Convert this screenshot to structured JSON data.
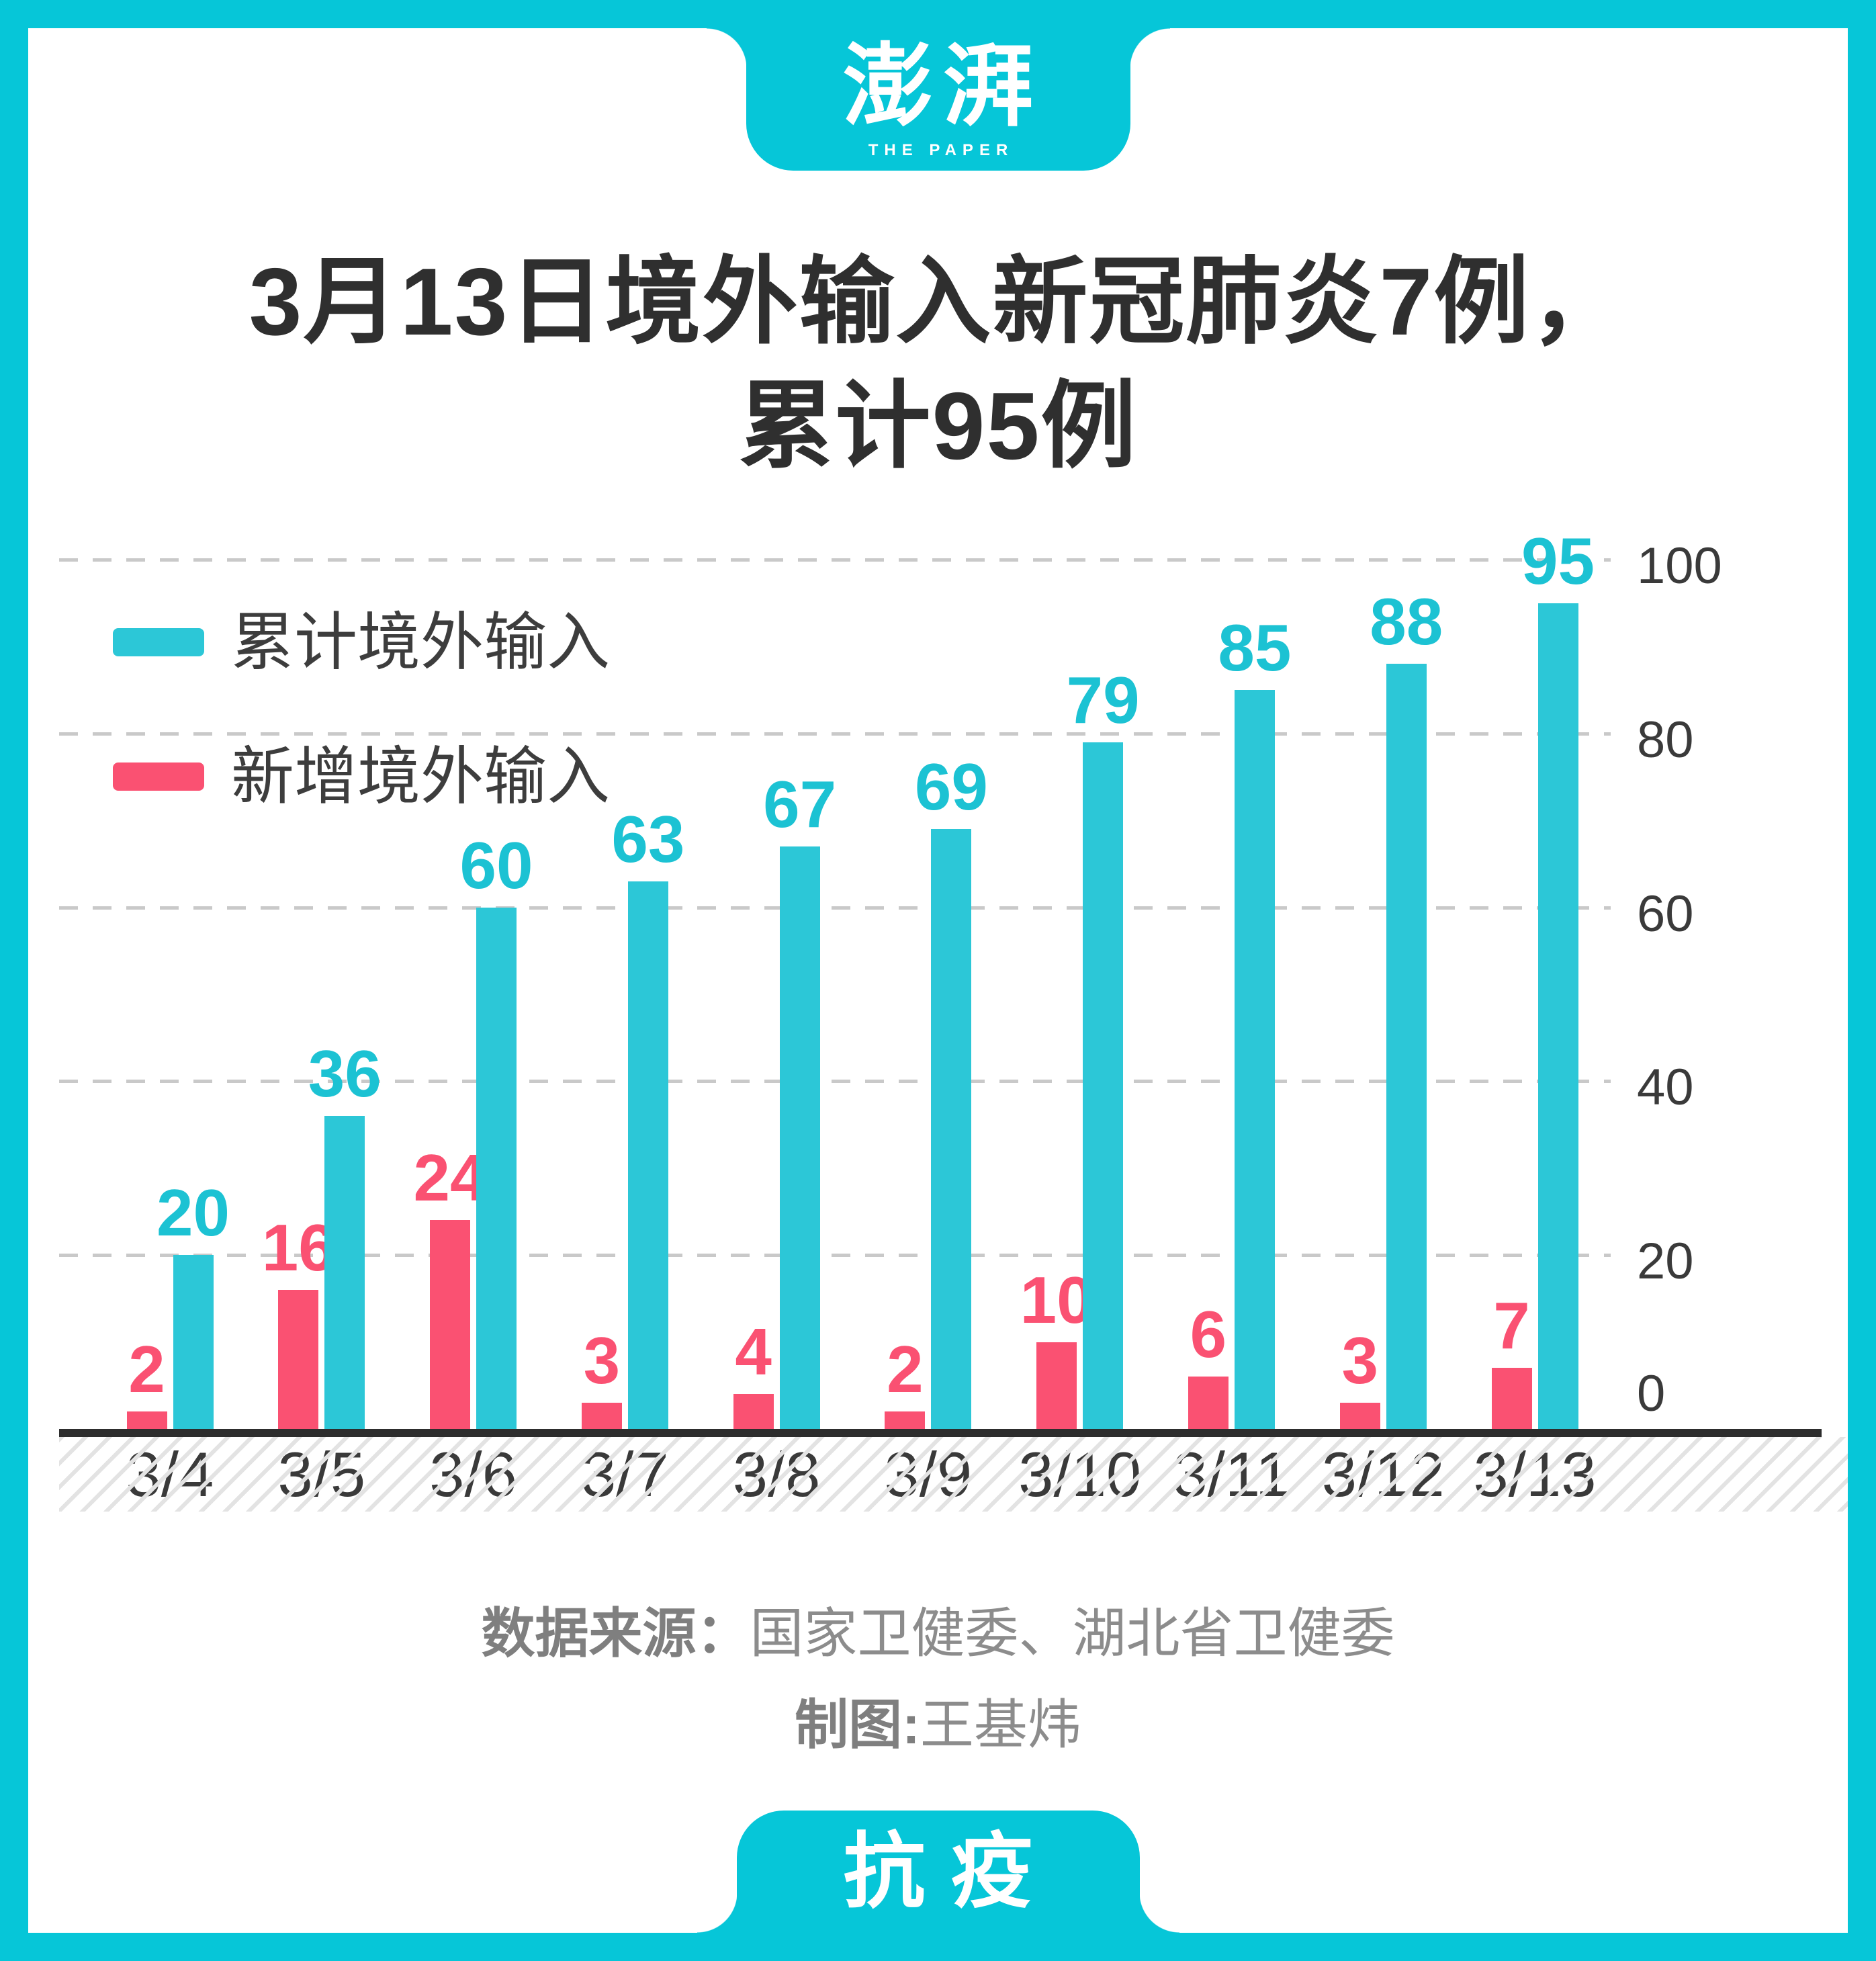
{
  "brand": {
    "logo_main": "澎湃",
    "logo_sub": "THE PAPER"
  },
  "title": {
    "line1": "3月13日境外输入新冠肺炎7例，",
    "line2": "累计95例"
  },
  "legend": {
    "items": [
      {
        "label": "累计境外输入",
        "color": "#2cc7d7"
      },
      {
        "label": "新增境外输入",
        "color": "#fa5172"
      }
    ]
  },
  "chart_data": {
    "type": "bar",
    "title": "3月13日境外输入新冠肺炎7例，累计95例",
    "categories": [
      "3/4",
      "3/5",
      "3/6",
      "3/7",
      "3/8",
      "3/9",
      "3/10",
      "3/11",
      "3/12",
      "3/13"
    ],
    "series": [
      {
        "name": "累计境外输入",
        "color": "#2cc7d7",
        "values": [
          20,
          36,
          60,
          63,
          67,
          69,
          79,
          85,
          88,
          95
        ]
      },
      {
        "name": "新增境外输入",
        "color": "#fa5172",
        "values": [
          2,
          16,
          24,
          3,
          4,
          2,
          10,
          6,
          3,
          7
        ]
      }
    ],
    "ylim": [
      0,
      100
    ],
    "yticks": [
      0,
      20,
      40,
      60,
      80,
      100
    ],
    "grid": "horizontal-dashed",
    "value_labels": true,
    "legend_position": "top-left",
    "y_axis_side": "right"
  },
  "footer": {
    "source_label": "数据来源：",
    "source_value": "国家卫健委、湖北省卫健委",
    "credit_label": "制图:",
    "credit_value": "王基炜"
  },
  "bottom_tab": {
    "label": "抗疫"
  },
  "colors": {
    "teal": "#06c6d8",
    "teal_bar": "#2cc7d7",
    "red": "#fa5172",
    "title_text": "#2f2f2f",
    "axis_text": "#3a3a3a",
    "muted_text": "#8c8c8c",
    "gridline": "#c9c9c9",
    "baseline": "#2d2d2d"
  }
}
